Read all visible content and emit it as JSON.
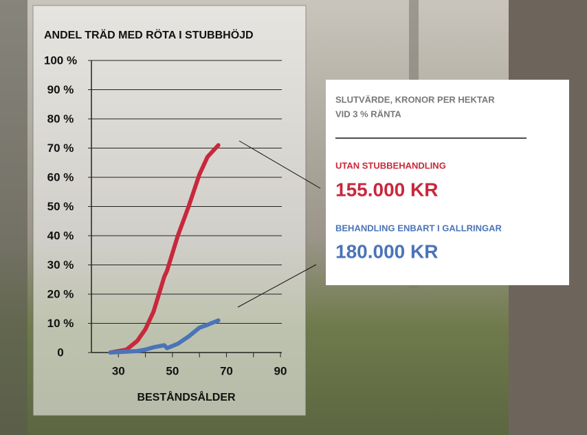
{
  "chart_data": {
    "type": "line",
    "title": "ANDEL TRÄD MED RÖTA I STUBBHÖJD",
    "x_label": "BESTÅNDSÅLDER",
    "x": [
      27,
      33,
      37,
      40,
      43,
      47,
      48,
      52,
      56,
      60,
      63,
      67
    ],
    "series": [
      {
        "name": "UTAN STUBBEHANDLING",
        "color": "#c8283c",
        "values": [
          0,
          1,
          4,
          8,
          14,
          26,
          28,
          40,
          50,
          61,
          67,
          71
        ]
      },
      {
        "name": "BEHANDLING ENBART I GALLRINGAR",
        "color": "#4a74b8",
        "values": [
          0,
          0.3,
          0.5,
          1,
          1.8,
          2.5,
          1.5,
          3,
          5.5,
          8.5,
          9.5,
          11
        ]
      }
    ],
    "xlim": [
      20,
      90
    ],
    "xticks": [
      30,
      50,
      70,
      90
    ],
    "xminorticks": [
      40,
      60,
      80
    ],
    "ylim": [
      0,
      100
    ],
    "yticks": [
      0,
      {
        "value": 10,
        "label": "10 %"
      },
      {
        "value": 20,
        "label": "20 %"
      },
      {
        "value": 30,
        "label": "30 %"
      },
      {
        "value": 40,
        "label": "40 %"
      },
      {
        "value": 50,
        "label": "50 %"
      },
      {
        "value": 60,
        "label": "60 %"
      },
      {
        "value": 70,
        "label": "70 %"
      },
      {
        "value": 80,
        "label": "80 %"
      },
      {
        "value": 90,
        "label": "90 %"
      },
      {
        "value": 100,
        "label": "100 %"
      }
    ],
    "grid": true
  },
  "info_box": {
    "heading": [
      "SLUTVÄRDE, KRONOR PER HEKTAR",
      "VID 3 % RÄNTA"
    ],
    "items": [
      {
        "label": "UTAN STUBBEHANDLING",
        "value": "155.000 KR"
      },
      {
        "label": "BEHANDLING ENBART I GALLRINGAR",
        "value": "180.000 KR"
      }
    ]
  }
}
